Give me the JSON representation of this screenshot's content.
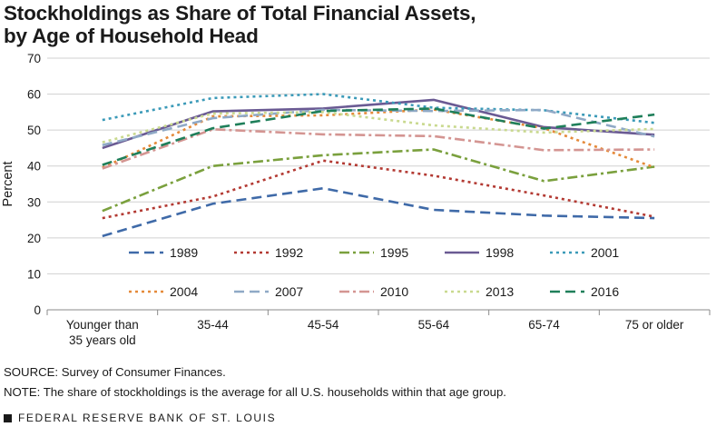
{
  "title_line1": "Stockholdings as Share of Total Financial Assets,",
  "title_line2": "by Age of Household Head",
  "source": "SOURCE: Survey of Consumer Finances.",
  "note": "NOTE: The share of stockholdings is the average for all U.S. households within that age group.",
  "footer": "FEDERAL RESERVE BANK OF ST. LOUIS",
  "chart_data": {
    "type": "line",
    "ylabel": "Percent",
    "xlabel": "",
    "ylim": [
      0,
      70
    ],
    "yticks": [
      0,
      10,
      20,
      30,
      40,
      50,
      60,
      70
    ],
    "categories": [
      "Younger than 35 years old",
      "35-44",
      "45-54",
      "55-64",
      "65-74",
      "75 or older"
    ],
    "category_lines": [
      [
        "Younger than",
        "35 years old"
      ],
      [
        "35-44"
      ],
      [
        "45-54"
      ],
      [
        "55-64"
      ],
      [
        "65-74"
      ],
      [
        "75 or older"
      ]
    ],
    "grid": "horizontal",
    "legend_position": "inside-bottom",
    "series": [
      {
        "name": "1989",
        "color": "#3f6aa8",
        "dash": "long-dash",
        "values": [
          20.5,
          29.5,
          33.8,
          27.8,
          26.2,
          25.5
        ]
      },
      {
        "name": "1992",
        "color": "#b33a33",
        "dash": "dot",
        "values": [
          25.5,
          31.5,
          41.5,
          37.3,
          31.8,
          25.9
        ]
      },
      {
        "name": "1995",
        "color": "#7aa03d",
        "dash": "dash-dot",
        "values": [
          27.5,
          40.0,
          43.0,
          44.6,
          35.8,
          39.8
        ]
      },
      {
        "name": "1998",
        "color": "#6a5a93",
        "dash": "solid",
        "values": [
          45.0,
          55.2,
          56.0,
          58.4,
          50.8,
          48.7
        ]
      },
      {
        "name": "2001",
        "color": "#3b9ab8",
        "dash": "dot",
        "values": [
          52.8,
          58.9,
          60.0,
          56.2,
          55.5,
          52.0
        ]
      },
      {
        "name": "2004",
        "color": "#e58a3a",
        "dash": "dot",
        "values": [
          39.5,
          53.8,
          54.1,
          55.7,
          50.5,
          39.6
        ]
      },
      {
        "name": "2007",
        "color": "#8fa9c6",
        "dash": "long-dash",
        "values": [
          45.8,
          53.3,
          55.6,
          55.3,
          55.6,
          48.2
        ]
      },
      {
        "name": "2010",
        "color": "#d49592",
        "dash": "dash-dot",
        "values": [
          39.3,
          50.2,
          48.8,
          48.3,
          44.4,
          44.6
        ]
      },
      {
        "name": "2013",
        "color": "#c9d98f",
        "dash": "dot",
        "values": [
          46.6,
          54.6,
          55.0,
          51.3,
          49.3,
          50.3
        ]
      },
      {
        "name": "2016",
        "color": "#1f7f5a",
        "dash": "long-dash",
        "values": [
          40.3,
          50.5,
          55.3,
          56.0,
          50.4,
          54.3
        ]
      }
    ]
  }
}
